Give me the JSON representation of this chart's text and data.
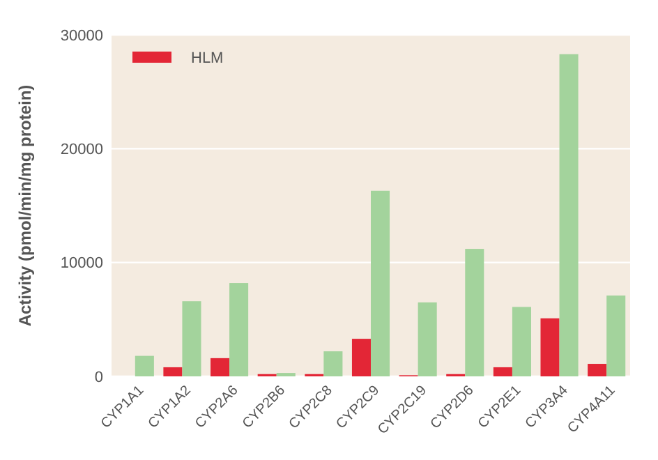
{
  "chart_data": {
    "type": "bar",
    "ylabel": "Activity (pmol/min/mg protein)",
    "categories": [
      "CYP1A1",
      "CYP1A2",
      "CYP2A6",
      "CYP2B6",
      "CYP2C8",
      "CYP2C9",
      "CYP2C19",
      "CYP2D6",
      "CYP2E1",
      "CYP3A4",
      "CYP4A11"
    ],
    "series": [
      {
        "name": "HLM",
        "color": "#e32636",
        "values": [
          0,
          800,
          1600,
          200,
          200,
          3300,
          100,
          200,
          800,
          5100,
          1100
        ]
      },
      {
        "color": "#a3d39c",
        "values": [
          1800,
          6600,
          8200,
          300,
          2200,
          16300,
          6500,
          11200,
          6100,
          28300,
          7100
        ]
      }
    ],
    "ylim": [
      0,
      30000
    ],
    "yticks": [
      0,
      10000,
      20000,
      30000
    ],
    "grid": "y",
    "legend": "top left"
  }
}
